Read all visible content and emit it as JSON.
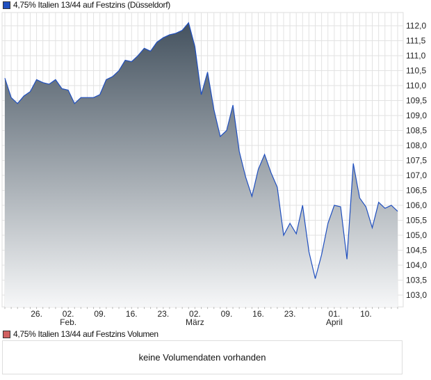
{
  "legend_price": "4,75% Italien 13/44 auf Festzins (Düsseldorf)",
  "legend_volume": "4,75% Italien 13/44 auf Festzins Volumen",
  "volume_message": "keine Volumendaten vorhanden",
  "colors": {
    "price_swatch": "#1f4fbf",
    "volume_swatch": "#d06060",
    "line": "#1f4fbf",
    "fill_top": "#44525f",
    "fill_bottom": "#f6f7f8",
    "grid": "#dddddd"
  },
  "chart_data": {
    "type": "area",
    "title": "4,75% Italien 13/44 auf Festzins (Düsseldorf)",
    "xlabel": "",
    "ylabel": "",
    "ylim": [
      102.7,
      112.4
    ],
    "yticks": [
      103.0,
      103.5,
      104.0,
      104.5,
      105.0,
      105.5,
      106.0,
      106.5,
      107.0,
      107.5,
      108.0,
      108.5,
      109.0,
      109.5,
      110.0,
      110.5,
      111.0,
      111.5,
      112.0
    ],
    "ytick_labels": [
      "103,0",
      "103,5",
      "104,0",
      "104,5",
      "105,0",
      "105,5",
      "106,0",
      "106,5",
      "107,0",
      "107,5",
      "108,0",
      "108,5",
      "109,0",
      "109,5",
      "110,0",
      "110,5",
      "111,0",
      "111,5",
      "112,0"
    ],
    "xticks": [
      {
        "index": 5,
        "label": "26.",
        "sub": ""
      },
      {
        "index": 10,
        "label": "02.",
        "sub": "Feb."
      },
      {
        "index": 15,
        "label": "09.",
        "sub": ""
      },
      {
        "index": 20,
        "label": "16.",
        "sub": ""
      },
      {
        "index": 25,
        "label": "23.",
        "sub": ""
      },
      {
        "index": 30,
        "label": "02.",
        "sub": "März"
      },
      {
        "index": 35,
        "label": "09.",
        "sub": ""
      },
      {
        "index": 40,
        "label": "16.",
        "sub": ""
      },
      {
        "index": 45,
        "label": "23.",
        "sub": ""
      },
      {
        "index": 52,
        "label": "01.",
        "sub": "April"
      },
      {
        "index": 57,
        "label": "10.",
        "sub": ""
      }
    ],
    "values": [
      110.25,
      109.6,
      109.4,
      109.65,
      109.8,
      110.2,
      110.1,
      110.05,
      110.2,
      109.9,
      109.85,
      109.4,
      109.6,
      109.6,
      109.6,
      109.7,
      110.2,
      110.3,
      110.5,
      110.85,
      110.8,
      111.0,
      111.25,
      111.15,
      111.45,
      111.6,
      111.7,
      111.75,
      111.85,
      112.1,
      111.3,
      109.7,
      110.45,
      109.2,
      108.3,
      108.5,
      109.35,
      107.8,
      106.95,
      106.3,
      107.2,
      107.7,
      107.1,
      106.6,
      105.0,
      105.4,
      105.05,
      106.0,
      104.45,
      103.55,
      104.35,
      105.4,
      106.0,
      105.95,
      104.2,
      107.4,
      106.25,
      105.95,
      105.25,
      106.1,
      105.9,
      106.0,
      105.8
    ]
  }
}
